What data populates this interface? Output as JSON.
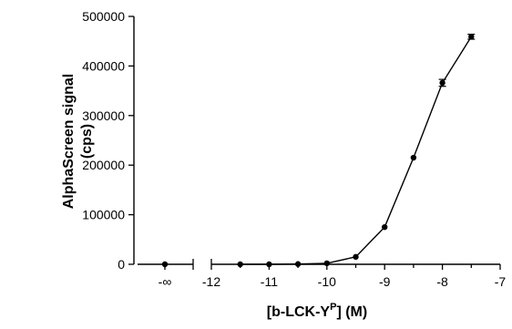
{
  "chart_data": {
    "type": "line",
    "xlabel": {
      "main": "[b-LCK-Y",
      "sup": "P",
      "tail": "] (M)"
    },
    "ylabel": [
      "AlphaScreen signal",
      "(cps)"
    ],
    "ylim": [
      0,
      500000
    ],
    "y_ticks": [
      "0",
      "100000",
      "200000",
      "300000",
      "400000",
      "500000"
    ],
    "x_break": {
      "label": "-∞",
      "segment_range": [
        -12,
        -7
      ]
    },
    "x_ticks": [
      "-12",
      "-11",
      "-10",
      "-9",
      "-8",
      "-7"
    ],
    "grid": false,
    "series": [
      {
        "points": [
          {
            "x": "-∞",
            "y": 0,
            "err": 0
          },
          {
            "x": -11.5,
            "y": 0,
            "err": 0
          },
          {
            "x": -11,
            "y": 0,
            "err": 0
          },
          {
            "x": -10.5,
            "y": 500,
            "err": 0
          },
          {
            "x": -10,
            "y": 2000,
            "err": 0
          },
          {
            "x": -9.5,
            "y": 15000,
            "err": 0
          },
          {
            "x": -9,
            "y": 75000,
            "err": 0
          },
          {
            "x": -8.5,
            "y": 215000,
            "err": 0
          },
          {
            "x": -8,
            "y": 366000,
            "err": 7000
          },
          {
            "x": -7.5,
            "y": 459000,
            "err": 5000
          }
        ]
      }
    ]
  }
}
